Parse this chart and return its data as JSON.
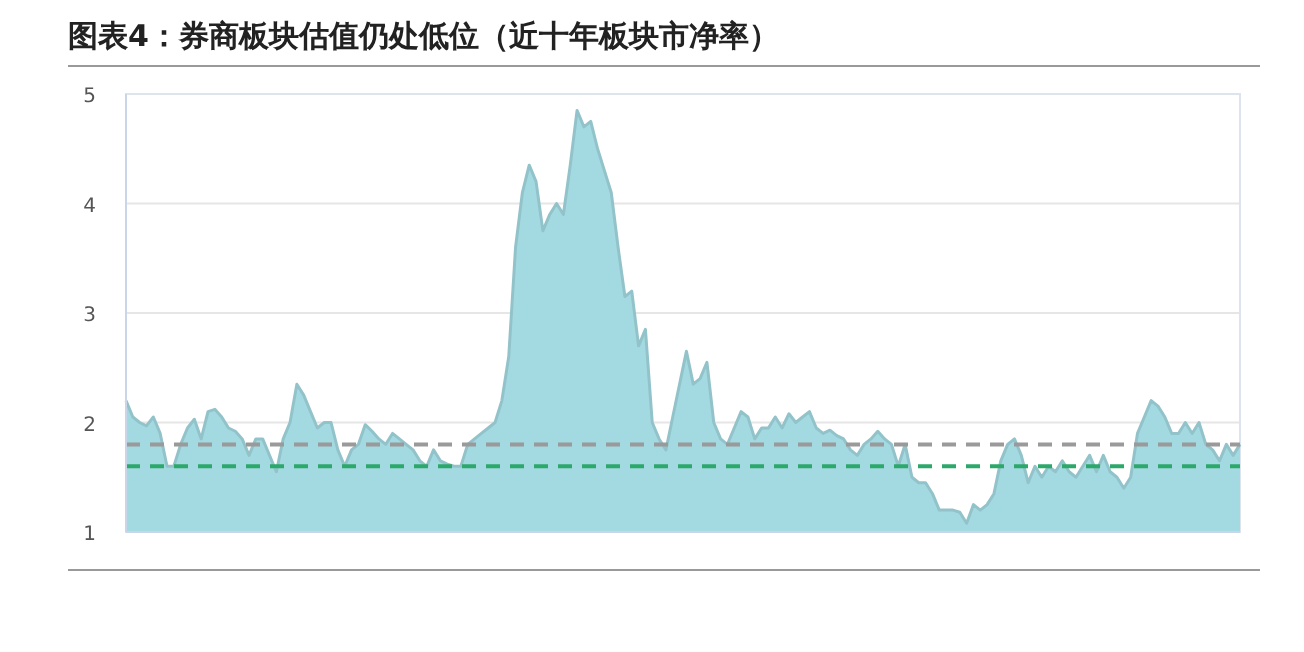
{
  "chart_data": {
    "type": "area",
    "title": "图表4：券商板块估值仍处低位（近十年板块市净率）",
    "categories": [
      null,
      null,
      null,
      null,
      null,
      null,
      null,
      null,
      null,
      null,
      null,
      null,
      null,
      null,
      null,
      null,
      null,
      null,
      null,
      null,
      null,
      null,
      null,
      null,
      null,
      null,
      null,
      null,
      null,
      null,
      null,
      null,
      null,
      null,
      null,
      null,
      null,
      null,
      null,
      null,
      null,
      null,
      null,
      null,
      null,
      null,
      null,
      null,
      null,
      null,
      null,
      null,
      null,
      null,
      null,
      null,
      null,
      null,
      null,
      null,
      null,
      null,
      null,
      null,
      null,
      null,
      null,
      null,
      null,
      null,
      null,
      null,
      null,
      null,
      null,
      null,
      null,
      null,
      null,
      null,
      null,
      null,
      null,
      null,
      null,
      null,
      null,
      null,
      null,
      null,
      null,
      null,
      null,
      null,
      null,
      null,
      null,
      null,
      null,
      null,
      null,
      null,
      null,
      null,
      null,
      null,
      null,
      null,
      null,
      null,
      null,
      null,
      null,
      null,
      null,
      null,
      null,
      null,
      null,
      null,
      null,
      null,
      null,
      null,
      null,
      null,
      null,
      null,
      null,
      null,
      null,
      null,
      null,
      null,
      null,
      null,
      null,
      null,
      null,
      null,
      null,
      null,
      null,
      null,
      null,
      null,
      null,
      null,
      null,
      null,
      null,
      null,
      null,
      null,
      null,
      null,
      null,
      null,
      null,
      null,
      null,
      null,
      null,
      null
    ],
    "values": [
      2.2,
      2.05,
      2.0,
      1.97,
      2.05,
      1.9,
      1.6,
      1.6,
      1.8,
      1.95,
      2.03,
      1.85,
      2.1,
      2.12,
      2.05,
      1.95,
      1.92,
      1.85,
      1.7,
      1.85,
      1.85,
      1.7,
      1.55,
      1.85,
      2.0,
      2.35,
      2.25,
      2.1,
      1.95,
      2.0,
      2.0,
      1.75,
      1.6,
      1.75,
      1.8,
      1.98,
      1.92,
      1.85,
      1.8,
      1.9,
      1.85,
      1.8,
      1.75,
      1.65,
      1.6,
      1.75,
      1.65,
      1.62,
      1.6,
      1.6,
      1.8,
      1.85,
      1.9,
      1.95,
      2.0,
      2.2,
      2.6,
      3.6,
      4.1,
      4.35,
      4.2,
      3.75,
      3.9,
      4.0,
      3.9,
      4.35,
      4.85,
      4.7,
      4.75,
      4.5,
      4.3,
      4.1,
      3.6,
      3.15,
      3.2,
      2.7,
      2.85,
      2.0,
      1.85,
      1.75,
      2.05,
      2.35,
      2.65,
      2.35,
      2.4,
      2.55,
      2.0,
      1.85,
      1.8,
      1.95,
      2.1,
      2.05,
      1.85,
      1.95,
      1.95,
      2.05,
      1.95,
      2.08,
      2.0,
      2.05,
      2.1,
      1.95,
      1.9,
      1.93,
      1.88,
      1.85,
      1.75,
      1.7,
      1.8,
      1.85,
      1.92,
      1.85,
      1.8,
      1.6,
      1.8,
      1.5,
      1.45,
      1.45,
      1.35,
      1.2,
      1.2,
      1.2,
      1.18,
      1.08,
      1.25,
      1.2,
      1.25,
      1.35,
      1.65,
      1.8,
      1.85,
      1.7,
      1.45,
      1.6,
      1.5,
      1.6,
      1.55,
      1.65,
      1.55,
      1.5,
      1.6,
      1.7,
      1.55,
      1.7,
      1.55,
      1.5,
      1.4,
      1.5,
      1.9,
      2.05,
      2.2,
      2.15,
      2.05,
      1.9,
      1.9,
      2.0,
      1.9,
      2.0,
      1.8,
      1.75,
      1.65,
      1.8,
      1.7,
      1.8
    ],
    "color": "#a3d9e0",
    "ylim": [
      1,
      5
    ],
    "yticks": [
      1,
      2,
      3,
      4,
      5
    ],
    "grid": "y",
    "ref_lines": [
      {
        "axis": "y",
        "value": 1.8,
        "color": "#9a9a9a",
        "line_style": "dashed"
      },
      {
        "axis": "y",
        "value": 1.6,
        "color": "#2ca86a",
        "line_style": "dashed"
      }
    ]
  }
}
